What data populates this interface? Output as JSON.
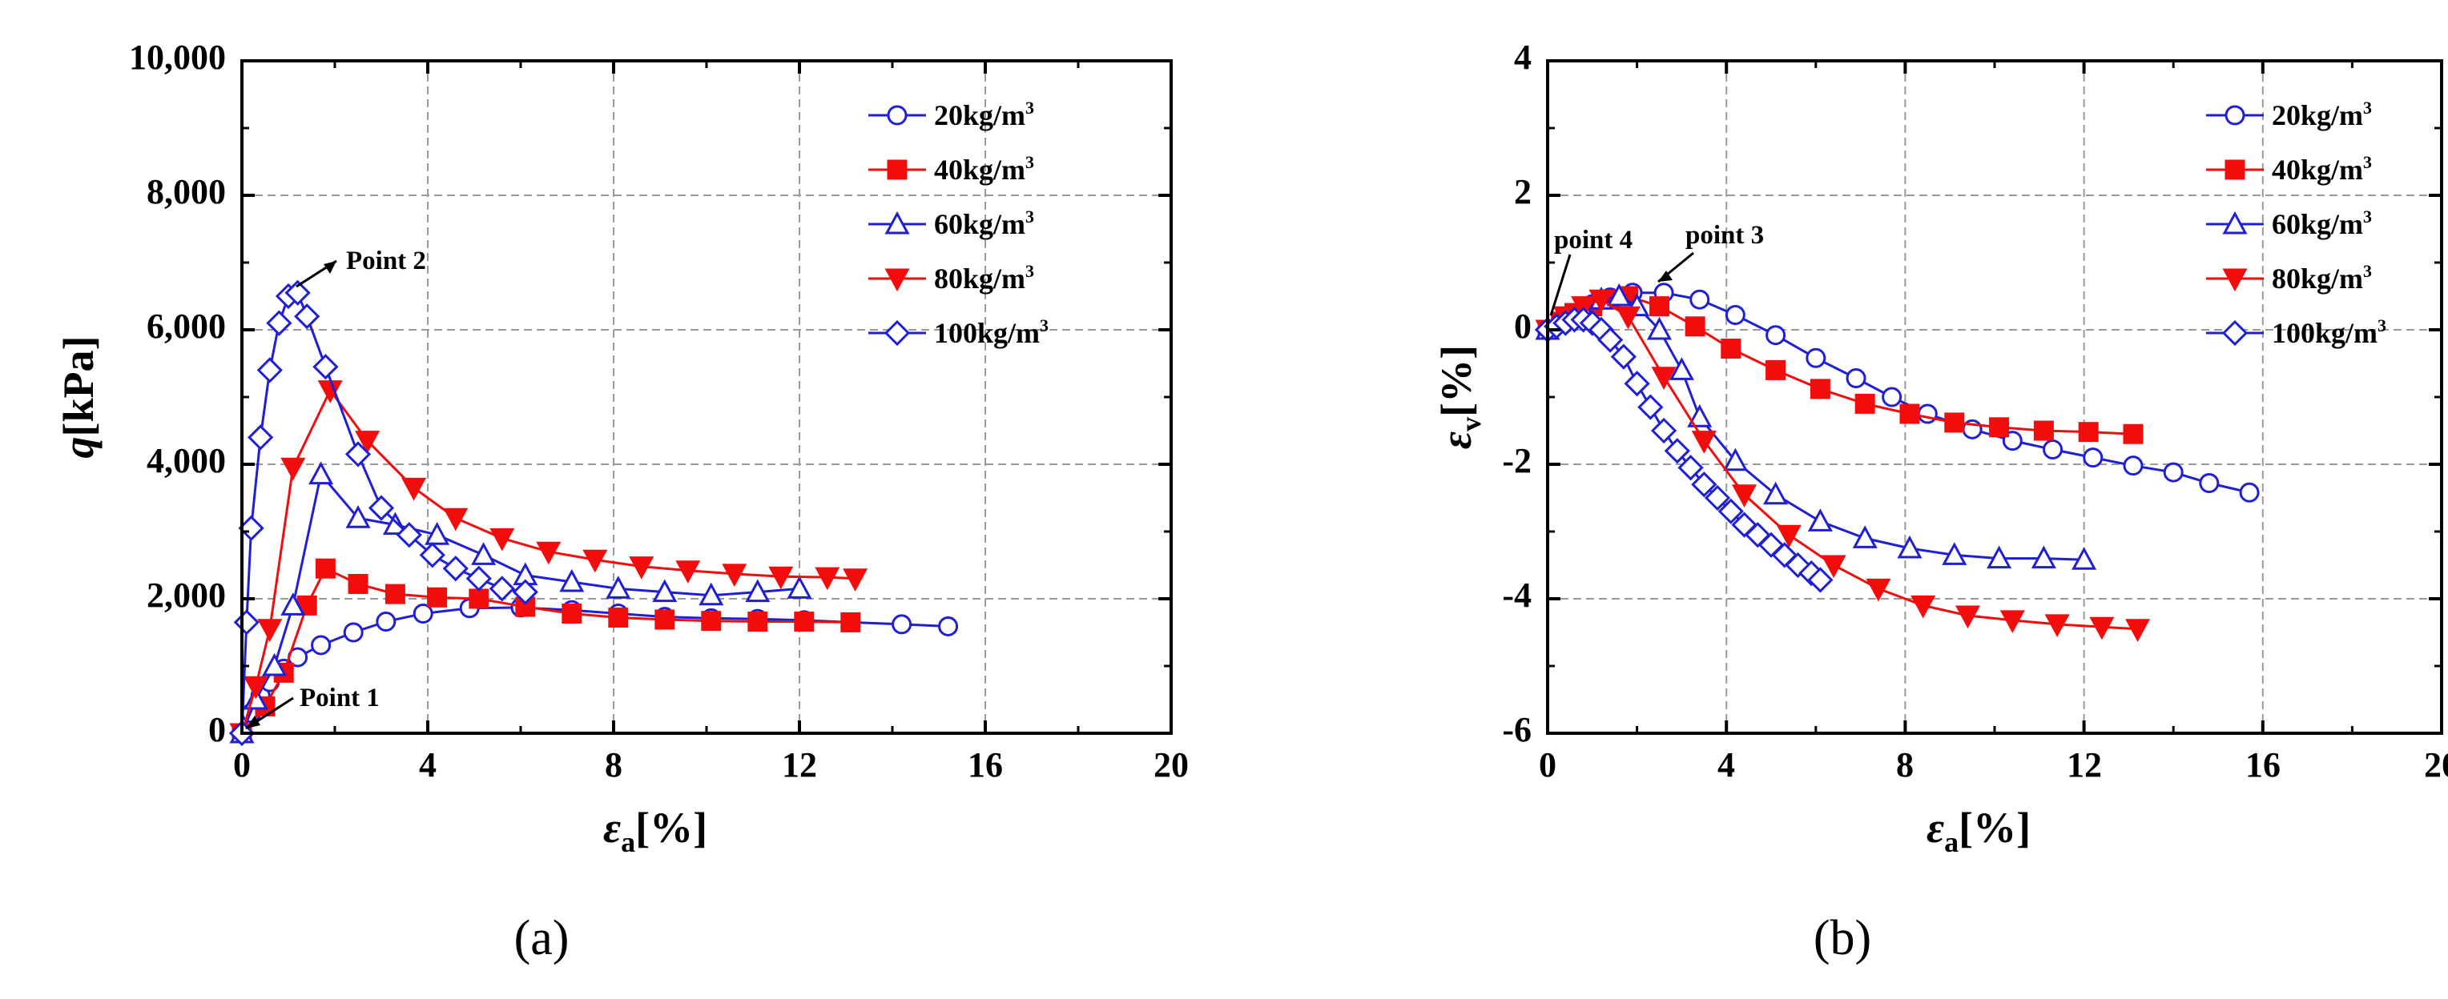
{
  "colors": {
    "blue": "#1f1fd6",
    "red": "#f20c0c",
    "grid": "#9a9a9a",
    "axis": "#000000"
  },
  "chart_data": [
    {
      "type": "line",
      "panel_label": "(a)",
      "ylabel_main": "q",
      "ylabel_unit": "[kPa]",
      "xlabel_main": "ε",
      "xlabel_sub": "a",
      "xlabel_unit": "[%]",
      "xlim": [
        0,
        20
      ],
      "ylim": [
        0,
        10000
      ],
      "xticks": [
        0,
        4,
        8,
        12,
        16,
        20
      ],
      "yticks": [
        0,
        2000,
        4000,
        6000,
        8000,
        10000
      ],
      "xtick_labels": [
        "0",
        "4",
        "8",
        "12",
        "16",
        "20"
      ],
      "ytick_labels": [
        "0",
        "2,000",
        "4,000",
        "6,000",
        "8,000",
        "10,000"
      ],
      "grid": true,
      "legend_position": "top-right",
      "series": [
        {
          "name": "20kg/m",
          "unit_sup": "3",
          "color": "blue",
          "marker": "circle-open",
          "x": [
            0,
            0.2,
            0.4,
            0.6,
            0.9,
            1.2,
            1.7,
            2.4,
            3.1,
            3.9,
            4.9,
            6.0,
            7.1,
            8.1,
            9.1,
            10.1,
            11.1,
            12.1,
            13.1,
            14.2,
            15.2
          ],
          "y": [
            0,
            300,
            560,
            760,
            960,
            1130,
            1310,
            1500,
            1660,
            1780,
            1860,
            1870,
            1830,
            1780,
            1730,
            1710,
            1700,
            1680,
            1650,
            1620,
            1590
          ]
        },
        {
          "name": "40kg/m",
          "unit_sup": "3",
          "color": "red",
          "marker": "square-filled",
          "x": [
            0,
            0.5,
            0.9,
            1.4,
            1.8,
            2.5,
            3.3,
            4.2,
            5.1,
            6.1,
            7.1,
            8.1,
            9.1,
            10.1,
            11.1,
            12.1,
            13.1
          ],
          "y": [
            0,
            400,
            900,
            1900,
            2450,
            2220,
            2070,
            2020,
            2000,
            1880,
            1780,
            1720,
            1690,
            1670,
            1660,
            1660,
            1650
          ]
        },
        {
          "name": "60kg/m",
          "unit_sup": "3",
          "color": "blue",
          "marker": "triangle-up-open",
          "x": [
            0,
            0.3,
            0.7,
            1.1,
            1.7,
            2.5,
            3.3,
            4.2,
            5.2,
            6.1,
            7.1,
            8.1,
            9.1,
            10.1,
            11.1,
            12.0
          ],
          "y": [
            0,
            500,
            1000,
            1900,
            3850,
            3200,
            3100,
            2950,
            2650,
            2350,
            2250,
            2150,
            2100,
            2050,
            2100,
            2150
          ]
        },
        {
          "name": "80kg/m",
          "unit_sup": "3",
          "color": "red",
          "marker": "triangle-down-filled",
          "x": [
            0,
            0.3,
            0.6,
            1.1,
            1.9,
            2.7,
            3.7,
            4.6,
            5.6,
            6.6,
            7.6,
            8.6,
            9.6,
            10.6,
            11.6,
            12.6,
            13.2
          ],
          "y": [
            0,
            700,
            1550,
            3950,
            5100,
            4350,
            3650,
            3200,
            2900,
            2700,
            2580,
            2480,
            2420,
            2370,
            2330,
            2320,
            2300
          ]
        },
        {
          "name": "100kg/m",
          "unit_sup": "3",
          "color": "blue",
          "marker": "diamond-open",
          "x": [
            0,
            0.1,
            0.2,
            0.4,
            0.6,
            0.8,
            1.0,
            1.2,
            1.4,
            1.8,
            2.5,
            3.0,
            3.6,
            4.1,
            4.6,
            5.1,
            5.6,
            6.1
          ],
          "y": [
            0,
            1650,
            3050,
            4400,
            5400,
            6100,
            6500,
            6550,
            6200,
            5450,
            4150,
            3350,
            2950,
            2650,
            2450,
            2300,
            2150,
            2100
          ]
        }
      ],
      "annotations": [
        {
          "text": "Point 2",
          "x": 1.2,
          "y": 6550
        },
        {
          "text": "Point 1",
          "x": 0.1,
          "y": 50
        }
      ]
    },
    {
      "type": "line",
      "panel_label": "(b)",
      "ylabel_main": "ε",
      "ylabel_sub": "v",
      "ylabel_unit": "[%]",
      "xlabel_main": "ε",
      "xlabel_sub": "a",
      "xlabel_unit": "[%]",
      "xlim": [
        0,
        20
      ],
      "ylim": [
        -6,
        4
      ],
      "xticks": [
        0,
        4,
        8,
        12,
        16,
        20
      ],
      "yticks": [
        -6,
        -4,
        -2,
        0,
        2,
        4
      ],
      "xtick_labels": [
        "0",
        "4",
        "8",
        "12",
        "16",
        "20"
      ],
      "ytick_labels": [
        "-6",
        "-4",
        "-2",
        "0",
        "2",
        "4"
      ],
      "grid": true,
      "legend_position": "top-right",
      "series": [
        {
          "name": "20kg/m",
          "unit_sup": "3",
          "color": "blue",
          "marker": "circle-open",
          "x": [
            0,
            0.3,
            0.6,
            1.0,
            1.4,
            1.9,
            2.6,
            3.4,
            4.2,
            5.1,
            6.0,
            6.9,
            7.7,
            8.5,
            9.5,
            10.4,
            11.3,
            12.2,
            13.1,
            14.0,
            14.8,
            15.7
          ],
          "y": [
            0,
            0.12,
            0.25,
            0.38,
            0.48,
            0.55,
            0.55,
            0.45,
            0.22,
            -0.08,
            -0.42,
            -0.72,
            -1.0,
            -1.25,
            -1.48,
            -1.65,
            -1.78,
            -1.9,
            -2.02,
            -2.12,
            -2.28,
            -2.42
          ]
        },
        {
          "name": "40kg/m",
          "unit_sup": "3",
          "color": "red",
          "marker": "square-filled",
          "x": [
            0,
            0.3,
            0.6,
            1.0,
            1.4,
            1.8,
            2.5,
            3.3,
            4.1,
            5.1,
            6.1,
            7.1,
            8.1,
            9.1,
            10.1,
            11.1,
            12.1,
            13.1
          ],
          "y": [
            0,
            0.12,
            0.25,
            0.35,
            0.45,
            0.5,
            0.35,
            0.05,
            -0.28,
            -0.6,
            -0.88,
            -1.1,
            -1.25,
            -1.38,
            -1.45,
            -1.5,
            -1.52,
            -1.55
          ]
        },
        {
          "name": "60kg/m",
          "unit_sup": "3",
          "color": "blue",
          "marker": "triangle-up-open",
          "x": [
            0,
            0.4,
            0.8,
            1.2,
            1.6,
            2.0,
            2.5,
            3.0,
            3.4,
            4.2,
            5.1,
            6.1,
            7.1,
            8.1,
            9.1,
            10.1,
            11.1,
            12.0
          ],
          "y": [
            0,
            0.15,
            0.3,
            0.45,
            0.5,
            0.35,
            0.0,
            -0.6,
            -1.3,
            -1.95,
            -2.45,
            -2.85,
            -3.1,
            -3.25,
            -3.35,
            -3.4,
            -3.4,
            -3.42
          ]
        },
        {
          "name": "80kg/m",
          "unit_sup": "3",
          "color": "red",
          "marker": "triangle-down-filled",
          "x": [
            0,
            0.4,
            0.8,
            1.2,
            1.8,
            2.6,
            3.5,
            4.4,
            5.4,
            6.4,
            7.4,
            8.4,
            9.4,
            10.4,
            11.4,
            12.4,
            13.2
          ],
          "y": [
            0,
            0.2,
            0.35,
            0.45,
            0.2,
            -0.7,
            -1.65,
            -2.45,
            -3.05,
            -3.5,
            -3.85,
            -4.1,
            -4.25,
            -4.32,
            -4.38,
            -4.42,
            -4.45
          ]
        },
        {
          "name": "100kg/m",
          "unit_sup": "3",
          "color": "blue",
          "marker": "diamond-open",
          "x": [
            0,
            0.2,
            0.4,
            0.6,
            0.8,
            1.0,
            1.2,
            1.4,
            1.7,
            2.0,
            2.3,
            2.6,
            2.9,
            3.2,
            3.5,
            3.8,
            4.1,
            4.4,
            4.7,
            5.0,
            5.3,
            5.6,
            5.9,
            6.1
          ],
          "y": [
            0,
            0.05,
            0.1,
            0.15,
            0.15,
            0.1,
            0.0,
            -0.15,
            -0.4,
            -0.8,
            -1.15,
            -1.5,
            -1.8,
            -2.05,
            -2.3,
            -2.5,
            -2.7,
            -2.9,
            -3.05,
            -3.2,
            -3.35,
            -3.5,
            -3.62,
            -3.72
          ]
        }
      ],
      "annotations": [
        {
          "text": "point 4",
          "x": 0.1,
          "y": 0.1
        },
        {
          "text": "point 3",
          "x": 1.9,
          "y": 0.6
        }
      ]
    }
  ]
}
